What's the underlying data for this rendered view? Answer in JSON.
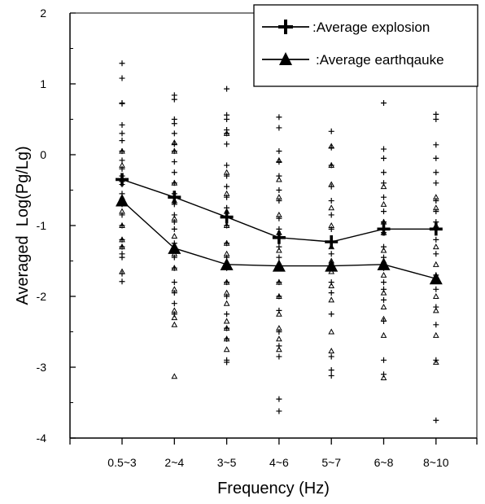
{
  "chart_data": {
    "type": "line",
    "title": "",
    "xlabel": "Frequency (Hz)",
    "ylabel": "Averaged  Log(Pg/Lg)",
    "categories": [
      "0.5~3",
      "2~4",
      "3~5",
      "4~6",
      "5~7",
      "6~8",
      "8~10"
    ],
    "ylim": [
      -4,
      2
    ],
    "yticks": [
      "-4",
      "-3",
      "-2",
      "-1",
      "0",
      "1",
      "2"
    ],
    "grid": false,
    "legend_position": "top-right",
    "series": [
      {
        "name": ":Average explosion",
        "marker": "plus",
        "values": [
          -0.35,
          -0.6,
          -0.88,
          -1.17,
          -1.23,
          -1.05,
          -1.05
        ],
        "scatter": [
          [
            1.29,
            1.08,
            0.73,
            0.72,
            0.42,
            0.3,
            0.2,
            0.05,
            -0.08,
            -0.2,
            -0.3,
            -0.42,
            -0.55,
            -0.7,
            -0.85,
            -1.0,
            -1.2,
            -1.3,
            -1.4,
            -1.45,
            -1.68,
            -1.79
          ],
          [
            0.84,
            0.78,
            0.5,
            0.44,
            0.3,
            0.15,
            0.05,
            -0.1,
            -0.25,
            -0.4,
            -0.55,
            -0.7,
            -0.85,
            -0.95,
            -1.05,
            -1.25,
            -1.45,
            -1.6,
            -1.8,
            -1.95,
            -2.1,
            -2.25
          ],
          [
            0.93,
            0.56,
            0.5,
            0.35,
            0.3,
            0.15,
            -0.15,
            -0.3,
            -0.45,
            -0.6,
            -0.75,
            -0.88,
            -1.0,
            -1.25,
            -1.45,
            -1.6,
            -1.8,
            -2.0,
            -2.25,
            -2.45,
            -2.6,
            -2.9,
            -2.93
          ],
          [
            0.53,
            0.38,
            0.05,
            -0.1,
            -0.3,
            -0.5,
            -0.65,
            -0.9,
            -1.05,
            -1.3,
            -1.45,
            -1.6,
            -1.8,
            -2.0,
            -2.2,
            -2.5,
            -2.7,
            -2.85,
            -3.45,
            -3.62
          ],
          [
            0.33,
            0.1,
            -0.15,
            -0.45,
            -0.65,
            -0.85,
            -1.05,
            -1.23,
            -1.4,
            -1.6,
            -1.8,
            -1.95,
            -2.25,
            -2.85,
            -3.04,
            -3.12
          ],
          [
            0.73,
            0.08,
            -0.05,
            -0.25,
            -0.4,
            -0.6,
            -0.8,
            -0.95,
            -1.1,
            -1.3,
            -1.45,
            -1.6,
            -1.8,
            -1.9,
            -2.05,
            -2.35,
            -2.9,
            -3.1
          ],
          [
            0.57,
            0.5,
            0.14,
            -0.05,
            -0.25,
            -0.4,
            -0.65,
            -0.8,
            -0.95,
            -1.05,
            -1.2,
            -1.4,
            -1.7,
            -1.9,
            -2.15,
            -2.4,
            -2.9,
            -3.75
          ]
        ]
      },
      {
        "name": ":Average earthqauke",
        "marker": "triangle",
        "values": [
          -0.65,
          -1.32,
          -1.55,
          -1.57,
          -1.57,
          -1.55,
          -1.75
        ],
        "scatter": [
          [
            0.05,
            -0.15,
            -0.35,
            -0.6,
            -0.8,
            -1.0,
            -1.2,
            -1.3,
            -1.65
          ],
          [
            0.17,
            0.05,
            -0.4,
            -0.65,
            -0.9,
            -1.15,
            -1.4,
            -1.6,
            -1.9,
            -2.2,
            -2.3,
            -2.4,
            -3.13
          ],
          [
            0.3,
            -0.25,
            -0.55,
            -0.8,
            -1.0,
            -1.25,
            -1.4,
            -1.55,
            -1.8,
            -1.95,
            -2.1,
            -2.35,
            -2.45,
            -2.6,
            -2.75
          ],
          [
            -0.08,
            -0.35,
            -0.6,
            -0.85,
            -1.1,
            -1.35,
            -1.6,
            -1.8,
            -2.0,
            -2.25,
            -2.45,
            -2.6,
            -2.75
          ],
          [
            0.12,
            -0.15,
            -0.42,
            -0.75,
            -1.0,
            -1.3,
            -1.5,
            -1.65,
            -1.85,
            -2.05,
            -2.5,
            -2.77
          ],
          [
            -0.45,
            -0.7,
            -0.95,
            -1.1,
            -1.35,
            -1.5,
            -1.7,
            -1.95,
            -2.15,
            -2.32,
            -2.55,
            -3.15
          ],
          [
            -0.6,
            -0.75,
            -1.0,
            -1.3,
            -1.55,
            -1.75,
            -2.0,
            -2.2,
            -2.55,
            -2.93
          ]
        ]
      }
    ]
  }
}
